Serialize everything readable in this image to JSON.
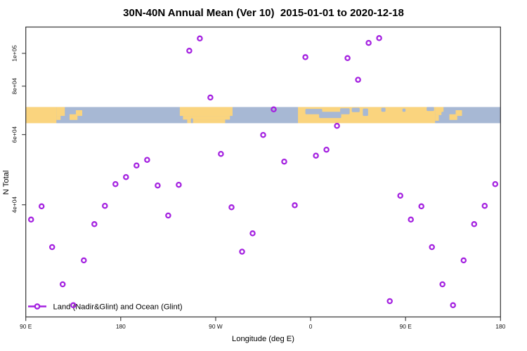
{
  "title": "30N-40N Annual Mean (Ver 10)  2015-01-01 to 2020-12-18",
  "chart_data": {
    "type": "scatter",
    "title": "30N-40N Annual Mean (Ver 10)  2015-01-01 to 2020-12-18",
    "xlabel": "Longitude (deg E)",
    "ylabel": "N Total",
    "x_axis": {
      "range_deg_east": [
        90,
        540
      ],
      "wraps_globe": true,
      "ticks": [
        {
          "lon": 90,
          "label": "90 E"
        },
        {
          "lon": 180,
          "label": "180"
        },
        {
          "lon": 270,
          "label": "90 W"
        },
        {
          "lon": 360,
          "label": "0"
        },
        {
          "lon": 450,
          "label": "90 E"
        },
        {
          "lon": 540,
          "label": "180"
        }
      ]
    },
    "y_axis": {
      "ticks": [
        {
          "value": 40000,
          "label": "4e+04"
        },
        {
          "value": 60000,
          "label": "6e+04"
        },
        {
          "value": 80000,
          "label": "8e+04"
        },
        {
          "value": 100000,
          "label": "1e+05"
        }
      ]
    },
    "legend": {
      "label": "Land (Nadir&Glint) and Ocean (Glint)",
      "marker": "open-circle-on-line"
    },
    "marker_color": "#A421E0",
    "point_format": [
      "lon_deg_e",
      "n_total"
    ],
    "series": [
      {
        "name": "Land (Nadir&Glint) and Ocean (Glint)",
        "points": [
          [
            95,
            37100
          ],
          [
            105,
            39700
          ],
          [
            115,
            31700
          ],
          [
            125,
            24400
          ],
          [
            135,
            20300
          ],
          [
            145,
            29100
          ],
          [
            155,
            36200
          ],
          [
            165,
            39800
          ],
          [
            175,
            45900
          ],
          [
            185,
            47900
          ],
          [
            195,
            51200
          ],
          [
            205,
            52800
          ],
          [
            215,
            45500
          ],
          [
            225,
            37900
          ],
          [
            235,
            45700
          ],
          [
            245,
            101600
          ],
          [
            255,
            109100
          ],
          [
            265,
            75300
          ],
          [
            275,
            54500
          ],
          [
            285,
            39500
          ],
          [
            295,
            30800
          ],
          [
            305,
            34400
          ],
          [
            315,
            59900
          ],
          [
            325,
            70400
          ],
          [
            335,
            52300
          ],
          [
            345,
            39900
          ],
          [
            355,
            97700
          ],
          [
            365,
            54000
          ],
          [
            375,
            55700
          ],
          [
            385,
            63600
          ],
          [
            395,
            97100
          ],
          [
            405,
            83900
          ],
          [
            415,
            106400
          ],
          [
            425,
            109300
          ],
          [
            435,
            21100
          ],
          [
            445,
            42600
          ],
          [
            455,
            37100
          ],
          [
            465,
            39700
          ],
          [
            475,
            31700
          ],
          [
            485,
            24400
          ],
          [
            495,
            20300
          ],
          [
            505,
            29100
          ],
          [
            515,
            36200
          ],
          [
            525,
            39800
          ],
          [
            535,
            45900
          ]
        ]
      }
    ],
    "map_band": {
      "description": "30N-40N latitude world-map strip (repeats 90E-180 swath at both ends)",
      "ocean_color": "#A7B8D4",
      "land_color": "#FAD47E",
      "n_total_span": [
        64700,
        71400
      ],
      "land_segments": [
        {
          "lon0": 90,
          "lon1": 119,
          "f0": 0,
          "f1": 1
        },
        {
          "lon0": 119,
          "lon1": 127,
          "f0": 0,
          "f1": 0.55
        },
        {
          "lon0": 119,
          "lon1": 123,
          "f0": 0.55,
          "f1": 0.8
        },
        {
          "lon0": 131.5,
          "lon1": 139,
          "f0": 0.45,
          "f1": 0.8
        },
        {
          "lon0": 137.5,
          "lon1": 143.5,
          "f0": 0.2,
          "f1": 0.55
        },
        {
          "lon0": 236,
          "lon1": 286,
          "f0": 0,
          "f1": 0.55
        },
        {
          "lon0": 239,
          "lon1": 283.5,
          "f0": 0.55,
          "f1": 0.78
        },
        {
          "lon0": 243,
          "lon1": 279,
          "f0": 0.78,
          "f1": 1
        },
        {
          "lon0": 348,
          "lon1": 478,
          "f0": 0,
          "f1": 1
        },
        {
          "lon0": 478,
          "lon1": 486,
          "f0": 0,
          "f1": 0.5
        },
        {
          "lon0": 478,
          "lon1": 481.5,
          "f0": 0.5,
          "f1": 0.85
        },
        {
          "lon0": 491.5,
          "lon1": 499,
          "f0": 0.45,
          "f1": 0.8
        },
        {
          "lon0": 497.5,
          "lon1": 503.5,
          "f0": 0.2,
          "f1": 0.55
        }
      ],
      "sea_patches": [
        {
          "lon0": 246.5,
          "lon1": 248.5,
          "f0": 0.7,
          "f1": 1
        },
        {
          "lon0": 355,
          "lon1": 371,
          "f0": 0.12,
          "f1": 0.45
        },
        {
          "lon0": 368,
          "lon1": 389,
          "f0": 0.3,
          "f1": 0.68
        },
        {
          "lon0": 388,
          "lon1": 397,
          "f0": 0.08,
          "f1": 0.45
        },
        {
          "lon0": 399,
          "lon1": 406.5,
          "f0": 0.05,
          "f1": 0.32
        },
        {
          "lon0": 409.5,
          "lon1": 414.5,
          "f0": 0.1,
          "f1": 0.55
        },
        {
          "lon0": 427,
          "lon1": 431,
          "f0": 0.05,
          "f1": 0.3
        },
        {
          "lon0": 447,
          "lon1": 450,
          "f0": 0.1,
          "f1": 0.3
        },
        {
          "lon0": 470,
          "lon1": 477,
          "f0": 0,
          "f1": 0.25
        },
        {
          "lon0": 484,
          "lon1": 491.5,
          "f0": 0.3,
          "f1": 0.8
        }
      ]
    }
  }
}
